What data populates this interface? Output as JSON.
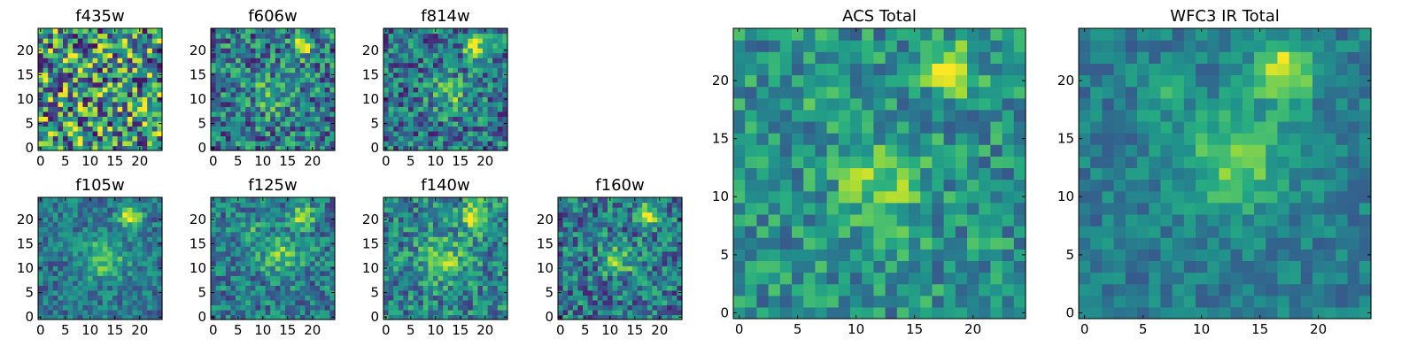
{
  "figure": {
    "colormap": "viridis",
    "colors": [
      "#440154",
      "#3b528b",
      "#21918c",
      "#5ec962",
      "#fde725"
    ]
  },
  "chart_data": [
    {
      "type": "heatmap",
      "title": "f435w",
      "grid_size": [
        25,
        25
      ],
      "xticks": [
        0,
        5,
        10,
        15,
        20
      ],
      "yticks": [
        0,
        5,
        10,
        15,
        20
      ],
      "noise": 0.5,
      "blobs": [
        {
          "x": 18,
          "y": 21,
          "amp": 0.12,
          "sigma": 1.6
        }
      ],
      "base": 0.55,
      "seed": 11
    },
    {
      "type": "heatmap",
      "title": "f606w",
      "grid_size": [
        25,
        25
      ],
      "xticks": [
        0,
        5,
        10,
        15,
        20
      ],
      "yticks": [
        0,
        5,
        10,
        15,
        20
      ],
      "noise": 0.32,
      "blobs": [
        {
          "x": 18,
          "y": 21,
          "amp": 0.55,
          "sigma": 1.5
        },
        {
          "x": 12,
          "y": 11,
          "amp": 0.22,
          "sigma": 2.8
        }
      ],
      "base": 0.42,
      "seed": 23
    },
    {
      "type": "heatmap",
      "title": "f814w",
      "grid_size": [
        25,
        25
      ],
      "xticks": [
        0,
        5,
        10,
        15,
        20
      ],
      "yticks": [
        0,
        5,
        10,
        15,
        20
      ],
      "noise": 0.3,
      "blobs": [
        {
          "x": 18,
          "y": 21,
          "amp": 0.6,
          "sigma": 1.5
        },
        {
          "x": 13,
          "y": 11,
          "amp": 0.3,
          "sigma": 2.6
        }
      ],
      "base": 0.4,
      "seed": 37
    },
    {
      "type": "heatmap",
      "title": "f105w",
      "grid_size": [
        25,
        25
      ],
      "xticks": [
        0,
        5,
        10,
        15,
        20
      ],
      "yticks": [
        0,
        5,
        10,
        15,
        20
      ],
      "noise": 0.2,
      "blobs": [
        {
          "x": 18,
          "y": 21,
          "amp": 0.55,
          "sigma": 1.6
        },
        {
          "x": 13,
          "y": 12,
          "amp": 0.35,
          "sigma": 3.0
        }
      ],
      "base": 0.4,
      "seed": 41
    },
    {
      "type": "heatmap",
      "title": "f125w",
      "grid_size": [
        25,
        25
      ],
      "xticks": [
        0,
        5,
        10,
        15,
        20
      ],
      "yticks": [
        0,
        5,
        10,
        15,
        20
      ],
      "noise": 0.24,
      "blobs": [
        {
          "x": 18,
          "y": 21,
          "amp": 0.45,
          "sigma": 1.6
        },
        {
          "x": 14,
          "y": 13,
          "amp": 0.3,
          "sigma": 3.0
        },
        {
          "x": 7,
          "y": 18,
          "amp": 0.2,
          "sigma": 1.8
        }
      ],
      "base": 0.42,
      "seed": 53
    },
    {
      "type": "heatmap",
      "title": "f140w",
      "grid_size": [
        25,
        25
      ],
      "xticks": [
        0,
        5,
        10,
        15,
        20
      ],
      "yticks": [
        0,
        5,
        10,
        15,
        20
      ],
      "noise": 0.26,
      "blobs": [
        {
          "x": 18,
          "y": 21,
          "amp": 0.45,
          "sigma": 2.2
        },
        {
          "x": 12,
          "y": 12,
          "amp": 0.3,
          "sigma": 3.2
        }
      ],
      "base": 0.45,
      "seed": 67
    },
    {
      "type": "heatmap",
      "title": "f160w",
      "grid_size": [
        25,
        25
      ],
      "xticks": [
        0,
        5,
        10,
        15,
        20
      ],
      "yticks": [
        0,
        5,
        10,
        15,
        20
      ],
      "noise": 0.28,
      "blobs": [
        {
          "x": 18,
          "y": 21,
          "amp": 0.55,
          "sigma": 1.6
        },
        {
          "x": 12,
          "y": 12,
          "amp": 0.35,
          "sigma": 2.4
        }
      ],
      "base": 0.4,
      "seed": 79
    },
    {
      "type": "heatmap",
      "title": "ACS Total",
      "grid_size": [
        25,
        25
      ],
      "xticks": [
        0,
        5,
        10,
        15,
        20
      ],
      "yticks": [
        0,
        5,
        10,
        15,
        20
      ],
      "noise": 0.22,
      "blobs": [
        {
          "x": 18,
          "y": 21,
          "amp": 0.55,
          "sigma": 1.4
        },
        {
          "x": 12,
          "y": 11,
          "amp": 0.3,
          "sigma": 2.6
        },
        {
          "x": 8,
          "y": 19,
          "amp": 0.15,
          "sigma": 1.5
        }
      ],
      "base": 0.5,
      "seed": 97
    },
    {
      "type": "heatmap",
      "title": "WFC3 IR Total",
      "grid_size": [
        25,
        25
      ],
      "xticks": [
        0,
        5,
        10,
        15,
        20
      ],
      "yticks": [
        0,
        5,
        10,
        15,
        20
      ],
      "noise": 0.14,
      "blobs": [
        {
          "x": 17,
          "y": 21,
          "amp": 0.55,
          "sigma": 1.8
        },
        {
          "x": 13,
          "y": 13,
          "amp": 0.35,
          "sigma": 3.2
        },
        {
          "x": 7,
          "y": 19,
          "amp": 0.2,
          "sigma": 1.5
        }
      ],
      "base": 0.42,
      "seed": 113
    }
  ]
}
